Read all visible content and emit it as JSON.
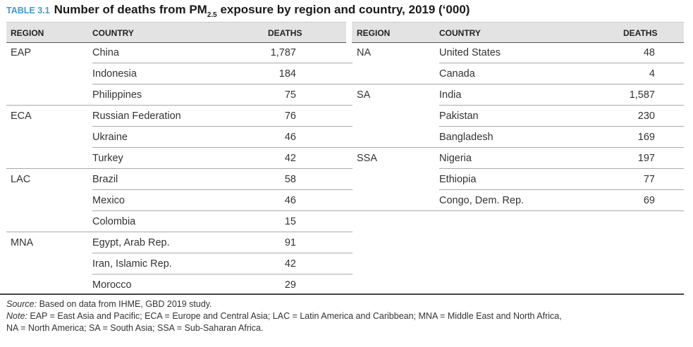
{
  "title": {
    "tag": "TABLE 3.1",
    "text_before": "Number of deaths from PM",
    "subscript": "2.5",
    "text_after": " exposure by region and country, 2019 (‘000)"
  },
  "headers": {
    "region": "REGION",
    "country": "COUNTRY",
    "deaths": "DEATHS"
  },
  "left_rows": [
    {
      "region": "EAP",
      "country": "China",
      "deaths": "1,787"
    },
    {
      "region": "",
      "country": "Indonesia",
      "deaths": "184"
    },
    {
      "region": "",
      "country": "Philippines",
      "deaths": "75"
    },
    {
      "region": "ECA",
      "country": "Russian Federation",
      "deaths": "76"
    },
    {
      "region": "",
      "country": "Ukraine",
      "deaths": "46"
    },
    {
      "region": "",
      "country": "Turkey",
      "deaths": "42"
    },
    {
      "region": "LAC",
      "country": "Brazil",
      "deaths": "58"
    },
    {
      "region": "",
      "country": "Mexico",
      "deaths": "46"
    },
    {
      "region": "",
      "country": "Colombia",
      "deaths": "15"
    },
    {
      "region": "MNA",
      "country": "Egypt, Arab Rep.",
      "deaths": "91"
    },
    {
      "region": "",
      "country": "Iran, Islamic Rep.",
      "deaths": "42"
    },
    {
      "region": "",
      "country": "Morocco",
      "deaths": "29"
    }
  ],
  "right_rows": [
    {
      "region": "NA",
      "country": "United States",
      "deaths": "48"
    },
    {
      "region": "",
      "country": "Canada",
      "deaths": "4"
    },
    {
      "region": "SA",
      "country": "India",
      "deaths": "1,587"
    },
    {
      "region": "",
      "country": "Pakistan",
      "deaths": "230"
    },
    {
      "region": "",
      "country": "Bangladesh",
      "deaths": "169"
    },
    {
      "region": "SSA",
      "country": "Nigeria",
      "deaths": "197"
    },
    {
      "region": "",
      "country": "Ethiopia",
      "deaths": "77"
    },
    {
      "region": "",
      "country": "Congo, Dem. Rep.",
      "deaths": "69"
    }
  ],
  "source": {
    "label": "Source:",
    "text": " Based on data from IHME, GBD 2019 study."
  },
  "note": {
    "label": "Note:",
    "line1": " EAP = East Asia and Pacific; ECA = Europe and Central Asia; LAC = Latin America and Caribbean; MNA = Middle East and North Africa,",
    "line2": "NA = North America; SA = South Asia; SSA = Sub-Saharan Africa."
  }
}
